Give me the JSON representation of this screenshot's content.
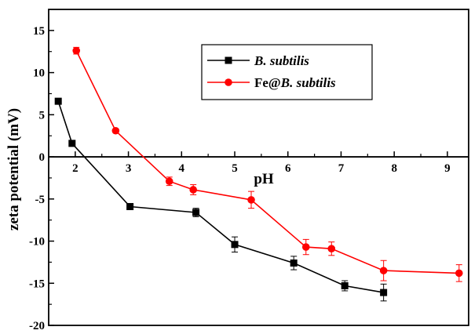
{
  "chart_data": {
    "type": "line",
    "xlabel": "pH",
    "ylabel": "zeta potential (mV)",
    "xlim": [
      1.5,
      9.4
    ],
    "ylim": [
      -20,
      17.5
    ],
    "x_ticks": [
      2,
      3,
      4,
      5,
      6,
      7,
      8,
      9
    ],
    "y_ticks": [
      15,
      10,
      5,
      0,
      -5,
      -10,
      -15,
      -20
    ],
    "x_tick_labels": [
      "2",
      "3",
      "4",
      "5",
      "6",
      "7",
      "8",
      "9"
    ],
    "y_tick_labels": [
      "15",
      "10",
      "5",
      "0",
      "-5",
      "-10",
      "-15",
      "-20"
    ],
    "legend_position": "top-right",
    "grid": false,
    "series": [
      {
        "name": "B. subtilis",
        "legend_parts": [
          {
            "text": "B. subtilis",
            "italic": true
          }
        ],
        "color": "#000000",
        "marker": "square",
        "x": [
          1.68,
          1.94,
          3.03,
          4.27,
          5.0,
          6.11,
          7.07,
          7.8
        ],
        "y": [
          6.6,
          1.6,
          -5.9,
          -6.6,
          -10.4,
          -12.6,
          -15.3,
          -16.1
        ],
        "error": [
          0.3,
          0.3,
          0.3,
          0.5,
          0.9,
          0.8,
          0.6,
          1.0
        ]
      },
      {
        "name": "Fe@B. subtilis",
        "legend_parts": [
          {
            "text": "Fe@",
            "italic": false
          },
          {
            "text": "B. subtilis",
            "italic": true
          }
        ],
        "color": "#ff0000",
        "marker": "circle",
        "x": [
          2.02,
          2.76,
          3.77,
          4.22,
          5.31,
          6.34,
          6.82,
          7.8,
          9.22
        ],
        "y": [
          12.6,
          3.1,
          -2.9,
          -3.9,
          -5.1,
          -10.7,
          -10.9,
          -13.5,
          -13.8
        ],
        "error": [
          0.4,
          0.2,
          0.5,
          0.6,
          1.0,
          0.9,
          0.8,
          1.2,
          1.0
        ]
      }
    ]
  }
}
